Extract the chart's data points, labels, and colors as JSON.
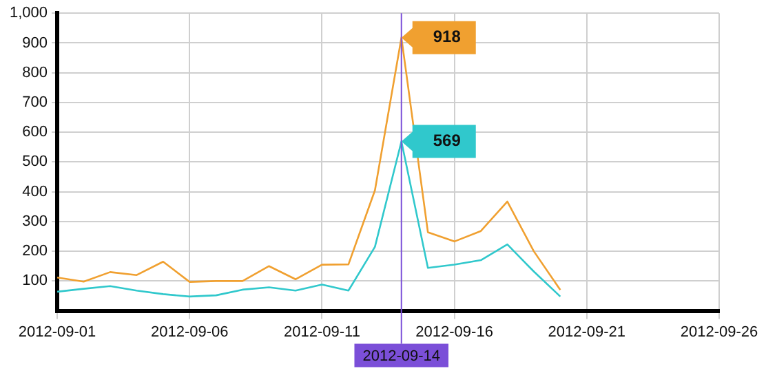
{
  "chart_data": {
    "type": "line",
    "x": [
      "2012-09-01",
      "2012-09-02",
      "2012-09-03",
      "2012-09-04",
      "2012-09-05",
      "2012-09-06",
      "2012-09-07",
      "2012-09-08",
      "2012-09-09",
      "2012-09-10",
      "2012-09-11",
      "2012-09-12",
      "2012-09-13",
      "2012-09-14",
      "2012-09-15",
      "2012-09-16",
      "2012-09-17",
      "2012-09-18",
      "2012-09-19",
      "2012-09-20"
    ],
    "series": [
      {
        "color": "#f0a030",
        "values": [
          112,
          98,
          130,
          120,
          165,
          97,
          100,
          100,
          150,
          106,
          155,
          156,
          405,
          918,
          264,
          233,
          268,
          367,
          200,
          70
        ]
      },
      {
        "color": "#30c8cc",
        "values": [
          64,
          74,
          83,
          68,
          56,
          48,
          52,
          71,
          79,
          68,
          88,
          68,
          215,
          569,
          144,
          155,
          170,
          223,
          132,
          48
        ]
      }
    ],
    "xlim": [
      "2012-09-01",
      "2012-09-26"
    ],
    "xticks": [
      "2012-09-01",
      "2012-09-06",
      "2012-09-11",
      "2012-09-16",
      "2012-09-21",
      "2012-09-26"
    ],
    "ylim": [
      0,
      1000
    ],
    "yticks": [
      100,
      200,
      300,
      400,
      500,
      600,
      700,
      800,
      900,
      {
        "value": 1000,
        "label": "1,000"
      }
    ],
    "grid": true,
    "legend": false,
    "marker": "none",
    "line_style": "solid",
    "ref_lines": [
      {
        "axis": "x",
        "value": "2012-09-14",
        "label": "2012-09-14",
        "color": "#7b4fd8"
      }
    ],
    "annotations": [
      {
        "text": "918",
        "x": "2012-09-14",
        "y": 918
      },
      {
        "text": "569",
        "x": "2012-09-14",
        "y": 569
      }
    ]
  }
}
